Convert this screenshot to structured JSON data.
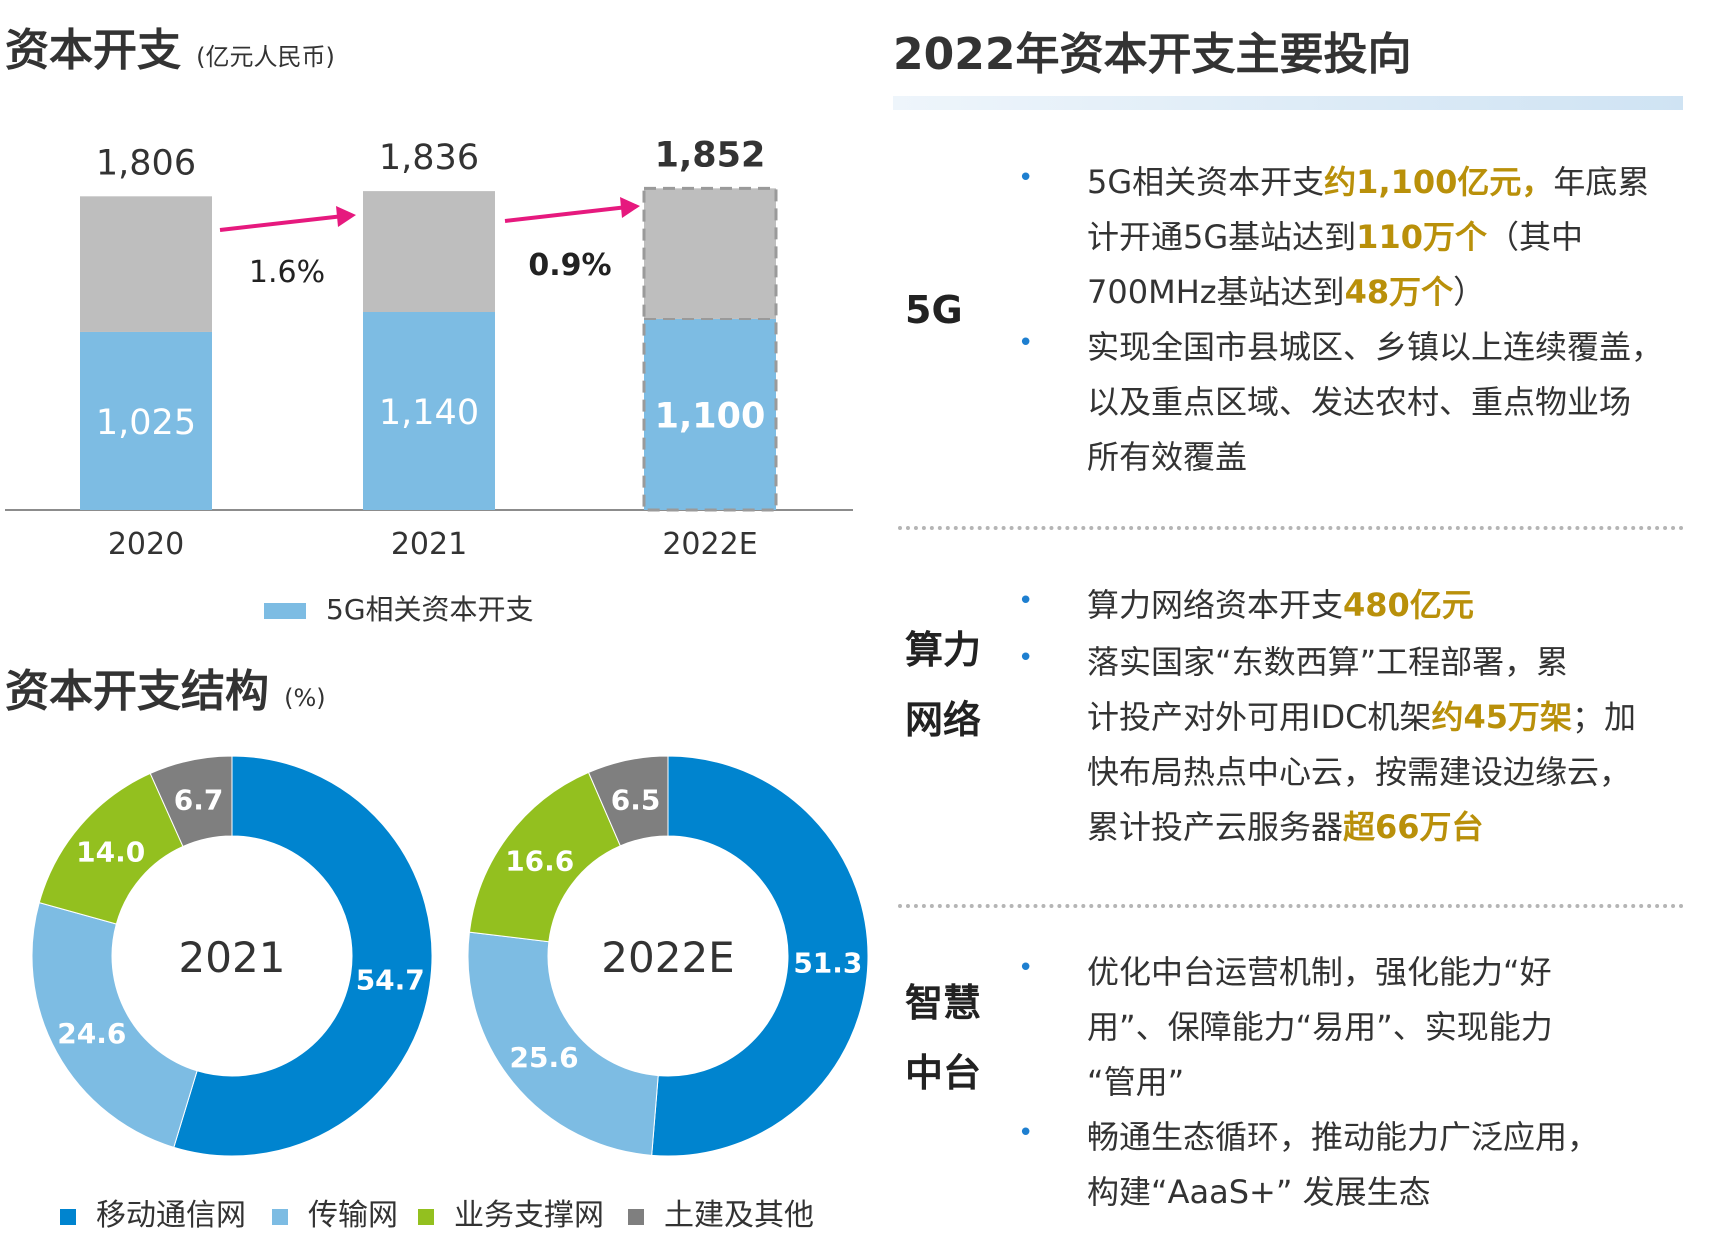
{
  "bar_chart_title": "资本开支",
  "bar_chart_unit": "(亿元人民币)",
  "bar_legend": "5G相关资本开支",
  "donut_section_title": "资本开支结构",
  "donut_unit": "(%)",
  "right_title": "2022年资本开支主要投向",
  "colors": {
    "blue_light": "#7dbce3",
    "gray": "#bebebe",
    "arrow": "#e6197e",
    "mobile": "#0084cf",
    "transmission": "#7dbce3",
    "support": "#93c01f",
    "civil": "#7f7f7f",
    "highlight": "#b9900a"
  },
  "chart_data": [
    {
      "type": "bar",
      "stacked": true,
      "title": "资本开支",
      "categories": [
        "2020",
        "2021",
        "2022E"
      ],
      "totals": [
        1806,
        1836,
        1852
      ],
      "total_labels": [
        "1,806",
        "1,836",
        "1,852"
      ],
      "series": [
        {
          "name": "5G相关资本开支",
          "values": [
            1025,
            1140,
            1100
          ],
          "labels": [
            "1,025",
            "1,140",
            "1,100"
          ]
        },
        {
          "values": [
            781,
            696,
            752
          ]
        }
      ],
      "growth_labels": [
        "1.6%",
        "0.9%"
      ],
      "ylim": [
        0,
        1900
      ],
      "estimate_index": 2
    },
    {
      "type": "pie",
      "donut": true,
      "center_label": "2021",
      "categories": [
        "移动通信网",
        "传输网",
        "业务支撑网",
        "土建及其他"
      ],
      "values": [
        54.7,
        24.6,
        14.0,
        6.7
      ],
      "labels": [
        "54.7",
        "24.6",
        "14.0",
        "6.7"
      ]
    },
    {
      "type": "pie",
      "donut": true,
      "center_label": "2022E",
      "categories": [
        "移动通信网",
        "传输网",
        "业务支撑网",
        "土建及其他"
      ],
      "values": [
        51.3,
        25.6,
        16.6,
        6.5
      ],
      "labels": [
        "51.3",
        "25.6",
        "16.6",
        "6.5"
      ]
    }
  ],
  "donut_legend": [
    "移动通信网",
    "传输网",
    "业务支撑网",
    "土建及其他"
  ],
  "sections": [
    {
      "label_lines": [
        "5G"
      ],
      "paragraphs": [
        {
          "lines": [
            [
              {
                "t": "5G相关资本开支"
              },
              {
                "t": "约1,100亿元，",
                "hl": true
              },
              {
                "t": "年底累"
              }
            ],
            [
              {
                "t": "计开通5G基站达到"
              },
              {
                "t": "110万个",
                "hl": true
              },
              {
                "t": "（其中"
              }
            ],
            [
              {
                "t": "700MHz基站达到"
              },
              {
                "t": "48万个",
                "hl": true
              },
              {
                "t": "）"
              }
            ]
          ]
        },
        {
          "lines": [
            [
              {
                "t": "实现全国市县城区、乡镇以上连续覆盖，"
              }
            ],
            [
              {
                "t": "以及重点区域、发达农村、重点物业场"
              }
            ],
            [
              {
                "t": "所有效覆盖"
              }
            ]
          ]
        }
      ]
    },
    {
      "label_lines": [
        "算力",
        "网络"
      ],
      "paragraphs": [
        {
          "lines": [
            [
              {
                "t": "算力网络资本开支"
              },
              {
                "t": "480亿元",
                "hl": true
              }
            ]
          ]
        },
        {
          "lines": [
            [
              {
                "t": "落实国家“东数西算”工程部署，累"
              }
            ],
            [
              {
                "t": "计投产对外可用IDC机架"
              },
              {
                "t": "约45万架",
                "hl": true
              },
              {
                "t": "；加"
              }
            ],
            [
              {
                "t": "快布局热点中心云，按需建设边缘云，"
              }
            ],
            [
              {
                "t": "累计投产云服务器"
              },
              {
                "t": "超66万台",
                "hl": true
              }
            ]
          ]
        }
      ]
    },
    {
      "label_lines": [
        "智慧",
        "中台"
      ],
      "paragraphs": [
        {
          "lines": [
            [
              {
                "t": "优化中台运营机制，强化能力“好"
              }
            ],
            [
              {
                "t": "用”、保障能力“易用”、实现能力"
              }
            ],
            [
              {
                "t": "“管用”"
              }
            ]
          ]
        },
        {
          "lines": [
            [
              {
                "t": "畅通生态循环，推动能力广泛应用，"
              }
            ],
            [
              {
                "t": "构建“AaaS+” 发展生态"
              }
            ]
          ]
        }
      ]
    }
  ]
}
